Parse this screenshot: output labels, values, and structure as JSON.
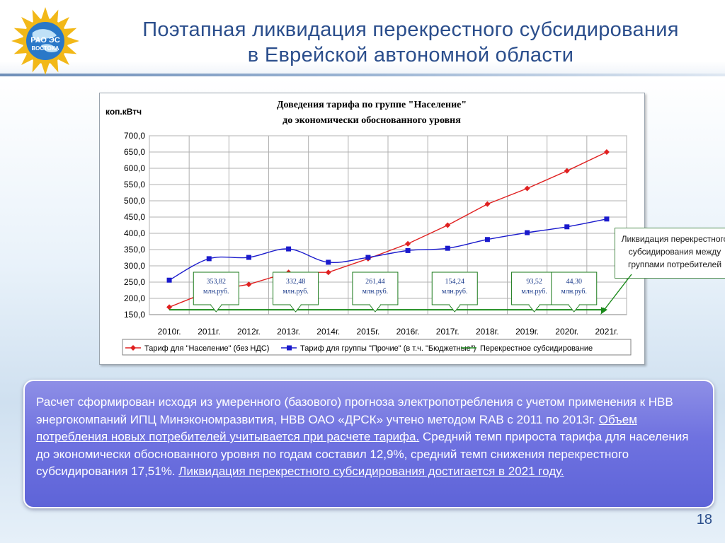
{
  "header": {
    "title_line1": "Поэтапная ликвидация перекрестного субсидирования",
    "title_line2": "в Еврейской автономной области",
    "logo_text_line1": "РАО ЭС",
    "logo_text_line2": "ВОСТОКА"
  },
  "chart_data": {
    "type": "line",
    "title_line1": "Доведения тарифа по группе \"Население\"",
    "title_line2": "до экономически обоснованного уровня",
    "ylabel": "коп.кВтч",
    "ylim": [
      150,
      700
    ],
    "y_ticks": [
      "150,0",
      "200,0",
      "250,0",
      "300,0",
      "350,0",
      "400,0",
      "450,0",
      "500,0",
      "550,0",
      "600,0",
      "650,0",
      "700,0"
    ],
    "grid": true,
    "legend_position": "bottom",
    "categories": [
      "2010г.",
      "2011г.",
      "2012г.",
      "2013г.",
      "2014г.",
      "2015г.",
      "2016г.",
      "2017г.",
      "2018г.",
      "2019г.",
      "2020г.",
      "2021г."
    ],
    "series": [
      {
        "name": "Тариф для \"Население\" (без НДС)",
        "color": "#e02020",
        "marker": "diamond",
        "values": [
          173,
          222,
          243,
          280,
          280,
          322,
          368,
          425,
          490,
          538,
          592,
          650
        ]
      },
      {
        "name": "Тариф для группы \"Прочие\" (в т.ч. \"Бюджетные\")",
        "color": "#1a1acc",
        "marker": "square",
        "values": [
          256,
          322,
          326,
          352,
          311,
          326,
          347,
          354,
          381,
          402,
          420,
          444
        ]
      },
      {
        "name": "Перекрестное субсидирование",
        "color": "#1a8a1a",
        "marker": "arrow",
        "values": [
          165,
          165,
          165,
          165,
          165,
          165,
          165,
          165,
          165,
          165,
          165,
          165
        ]
      }
    ],
    "annotations": [
      {
        "category": "2011г.",
        "value": "353,82",
        "unit": "млн.руб."
      },
      {
        "category": "2013г.",
        "value": "332,48",
        "unit": "млн.руб."
      },
      {
        "category": "2015г.",
        "value": "261,44",
        "unit": "млн.руб."
      },
      {
        "category": "2017г.",
        "value": "154,24",
        "unit": "млн.руб."
      },
      {
        "category": "2019г.",
        "value": "93,52",
        "unit": "млн.руб."
      },
      {
        "category": "2020г.",
        "value": "44,30",
        "unit": "млн.руб."
      }
    ]
  },
  "callout": {
    "line1": "Ликвидация перекрестного",
    "line2": "субсидирования между",
    "line3": "группами потребителей"
  },
  "info": {
    "p1": "Расчет сформирован исходя из умеренного (базового) прогноза электропотребления с учетом применения к НВВ энергокомпаний ИПЦ Минэкономразвития, НВВ ОАО «ДРСК» учтено методом RAB с 2011 по 2013г. ",
    "p1_underlined": "Объем потребления новых потребителей учитывается при расчете тарифа.",
    "p2": " Средний темп прироста тарифа для населения до экономически обоснованного уровня по годам составил 12,9%, средний темп снижения перекрестного субсидирования 17,51%. ",
    "p2_underlined": "Ликвидация перекрестного субсидирования достигается в 2021 году."
  },
  "page_number": "18"
}
